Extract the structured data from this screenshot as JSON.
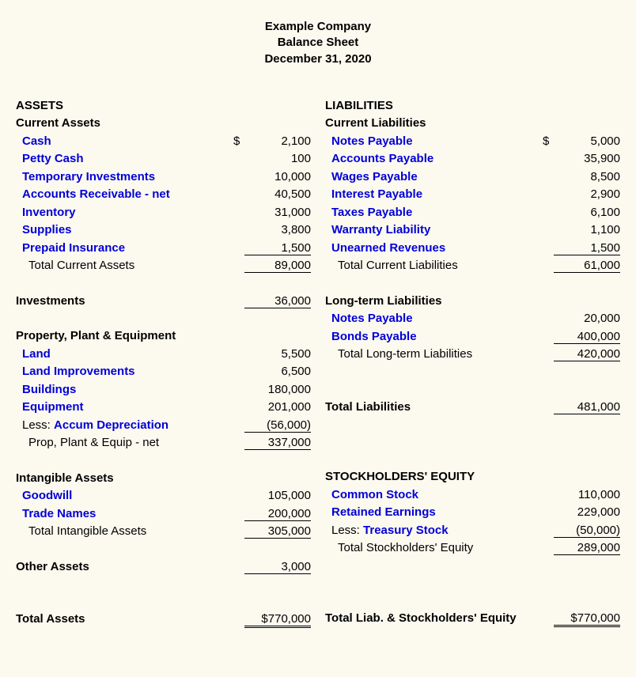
{
  "colors": {
    "background": "#fcf9ef",
    "text": "#000000",
    "link": "#0000d8"
  },
  "typography": {
    "font_family": "Arial",
    "base_fontsize_pt": 11,
    "bold_weight": 700
  },
  "header": {
    "company": "Example Company",
    "title": "Balance Sheet",
    "date": "December 31, 2020"
  },
  "assets": {
    "heading": "ASSETS",
    "current": {
      "heading": "Current Assets",
      "items": [
        {
          "label": "Cash",
          "value": "2,100",
          "currency": "$"
        },
        {
          "label": "Petty Cash",
          "value": "100"
        },
        {
          "label": "Temporary Investments",
          "value": "10,000"
        },
        {
          "label": "Accounts Receivable - net",
          "value": "40,500"
        },
        {
          "label": "Inventory",
          "value": "31,000"
        },
        {
          "label": "Supplies",
          "value": "3,800"
        },
        {
          "label": "Prepaid Insurance",
          "value": "1,500",
          "underline": true
        }
      ],
      "total_label": "Total Current Assets",
      "total_value": "89,000"
    },
    "investments": {
      "label": "Investments",
      "value": "36,000"
    },
    "ppe": {
      "heading": "Property, Plant & Equipment",
      "items": [
        {
          "label": "Land",
          "value": "5,500"
        },
        {
          "label": "Land Improvements",
          "value": "6,500"
        },
        {
          "label": "Buildings",
          "value": "180,000"
        },
        {
          "label": "Equipment",
          "value": "201,000"
        }
      ],
      "less_prefix": "Less: ",
      "less_link": "Accum Depreciation",
      "less_value": "(56,000)",
      "net_label": "Prop, Plant & Equip - net",
      "net_value": "337,000"
    },
    "intangible": {
      "heading": "Intangible Assets",
      "items": [
        {
          "label": "Goodwill",
          "value": "105,000"
        },
        {
          "label": "Trade Names",
          "value": "200,000",
          "underline": true
        }
      ],
      "total_label": "Total Intangible Assets",
      "total_value": "305,000"
    },
    "other": {
      "label": "Other Assets",
      "value": "3,000"
    },
    "total": {
      "label": "Total Assets",
      "value": "$770,000"
    }
  },
  "liab": {
    "heading": "LIABILITIES",
    "current": {
      "heading": "Current Liabilities",
      "items": [
        {
          "label": "Notes Payable",
          "value": "5,000",
          "currency": "$"
        },
        {
          "label": "Accounts Payable",
          "value": "35,900"
        },
        {
          "label": "Wages Payable",
          "value": "8,500"
        },
        {
          "label": "Interest Payable",
          "value": "2,900"
        },
        {
          "label": "Taxes Payable",
          "value": "6,100"
        },
        {
          "label": "Warranty Liability",
          "value": "1,100"
        },
        {
          "label": "Unearned Revenues",
          "value": "1,500",
          "underline": true
        }
      ],
      "total_label": "Total Current Liabilities",
      "total_value": "61,000"
    },
    "longterm": {
      "heading": "Long-term Liabilities",
      "items": [
        {
          "label": "Notes Payable",
          "value": "20,000"
        },
        {
          "label": "Bonds Payable",
          "value": "400,000",
          "underline": true
        }
      ],
      "total_label": "Total Long-term Liabilities",
      "total_value": "420,000"
    },
    "total": {
      "label": "Total Liabilities",
      "value": "481,000"
    }
  },
  "equity": {
    "heading": "STOCKHOLDERS' EQUITY",
    "items": [
      {
        "label": "Common Stock",
        "value": "110,000"
      },
      {
        "label": "Retained Earnings",
        "value": "229,000"
      }
    ],
    "less_prefix": "Less: ",
    "less_link": "Treasury Stock",
    "less_value": "(50,000)",
    "total_label": "Total Stockholders' Equity",
    "total_value": "289,000"
  },
  "grand": {
    "label": "Total Liab. & Stockholders' Equity",
    "value": "$770,000"
  }
}
